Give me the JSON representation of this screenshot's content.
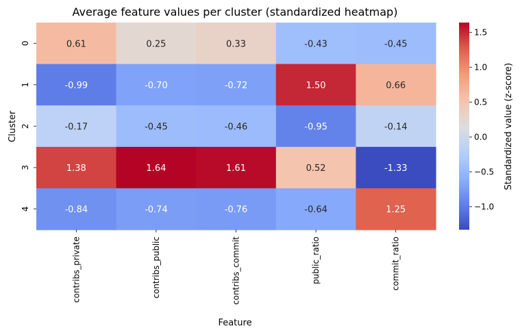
{
  "chart_data": {
    "type": "heatmap",
    "title": "Average feature values per cluster (standardized heatmap)",
    "xlabel": "Feature",
    "ylabel": "Cluster",
    "x_categories": [
      "contribs_private",
      "contribs_public",
      "contribs_commit",
      "public_ratio",
      "commit_ratio"
    ],
    "y_categories": [
      "0",
      "1",
      "2",
      "3",
      "4"
    ],
    "values": [
      [
        0.61,
        0.25,
        0.33,
        -0.43,
        -0.45
      ],
      [
        -0.99,
        -0.7,
        -0.72,
        1.5,
        0.66
      ],
      [
        -0.17,
        -0.45,
        -0.46,
        -0.95,
        -0.14
      ],
      [
        1.38,
        1.64,
        1.61,
        0.52,
        -1.33
      ],
      [
        -0.84,
        -0.74,
        -0.76,
        -0.64,
        1.25
      ]
    ],
    "colormap": "coolwarm",
    "vmin": -1.33,
    "vmax": 1.64,
    "colorbar": {
      "label": "Standardized value (z-score)",
      "ticks": [
        "1.5",
        "1.0",
        "0.5",
        "0.0",
        "−0.5",
        "−1.0"
      ],
      "tick_values": [
        1.5,
        1.0,
        0.5,
        0.0,
        -0.5,
        -1.0
      ]
    },
    "grid": false
  }
}
